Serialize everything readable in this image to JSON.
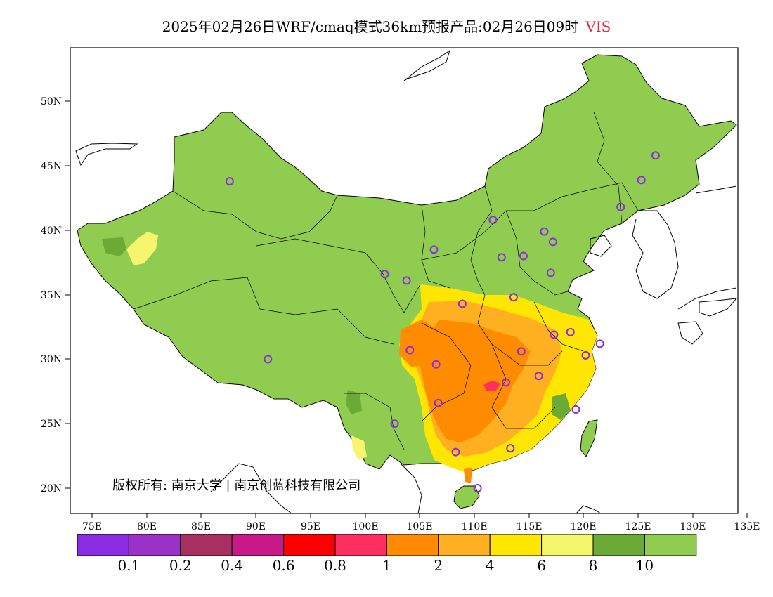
{
  "title": {
    "text": "2025年02月26日WRF/cmaq模式36km预报产品:02月26日09时",
    "variable": "VIS"
  },
  "axes": {
    "x_ticks": [
      "75E",
      "80E",
      "85E",
      "90E",
      "95E",
      "100E",
      "105E",
      "110E",
      "115E",
      "120E",
      "125E",
      "130E",
      "135E"
    ],
    "y_ticks": [
      "20N",
      "25N",
      "30N",
      "35N",
      "40N",
      "45N",
      "50N"
    ]
  },
  "copyright": "版权所有: 南京大学 | 南京创蓝科技有限公司",
  "colorbar": {
    "labels": [
      "0.1",
      "0.2",
      "0.4",
      "0.6",
      "0.8",
      "1",
      "2",
      "4",
      "6",
      "8",
      "10"
    ],
    "colors": [
      "#8b2be2",
      "#9b32c8",
      "#a83060",
      "#c8188a",
      "#ff0000",
      "#ff3060",
      "#ff8c00",
      "#ffb020",
      "#ffe600",
      "#f5f56e",
      "#6aaa35",
      "#90cc50"
    ]
  },
  "map_colors": {
    "land_good": "#90cc50",
    "dark_green": "#6aaa35",
    "light_yellow": "#f5f56e",
    "yellow": "#ffe600",
    "amber": "#ffb020",
    "orange": "#ff8c00",
    "magenta": "#ff3060",
    "station_ring": "#8b2be2"
  },
  "stations": [
    {
      "lon": 87.6,
      "lat": 43.8
    },
    {
      "lon": 126.6,
      "lat": 45.8
    },
    {
      "lon": 125.3,
      "lat": 43.9
    },
    {
      "lon": 123.4,
      "lat": 41.8
    },
    {
      "lon": 111.7,
      "lat": 40.8
    },
    {
      "lon": 116.4,
      "lat": 39.9
    },
    {
      "lon": 117.2,
      "lat": 39.1
    },
    {
      "lon": 106.3,
      "lat": 38.5
    },
    {
      "lon": 112.5,
      "lat": 37.9
    },
    {
      "lon": 114.5,
      "lat": 38.0
    },
    {
      "lon": 101.8,
      "lat": 36.6
    },
    {
      "lon": 103.8,
      "lat": 36.1
    },
    {
      "lon": 117.0,
      "lat": 36.7
    },
    {
      "lon": 113.6,
      "lat": 34.8
    },
    {
      "lon": 108.9,
      "lat": 34.3
    },
    {
      "lon": 117.3,
      "lat": 31.9
    },
    {
      "lon": 118.8,
      "lat": 32.1
    },
    {
      "lon": 121.5,
      "lat": 31.2
    },
    {
      "lon": 104.1,
      "lat": 30.7
    },
    {
      "lon": 114.3,
      "lat": 30.6
    },
    {
      "lon": 120.2,
      "lat": 30.3
    },
    {
      "lon": 106.5,
      "lat": 29.6
    },
    {
      "lon": 112.9,
      "lat": 28.2
    },
    {
      "lon": 115.9,
      "lat": 28.7
    },
    {
      "lon": 91.1,
      "lat": 30.0
    },
    {
      "lon": 106.7,
      "lat": 26.6
    },
    {
      "lon": 119.3,
      "lat": 26.1
    },
    {
      "lon": 102.7,
      "lat": 25.0
    },
    {
      "lon": 108.3,
      "lat": 22.8
    },
    {
      "lon": 113.3,
      "lat": 23.1
    },
    {
      "lon": 110.3,
      "lat": 20.0
    }
  ]
}
